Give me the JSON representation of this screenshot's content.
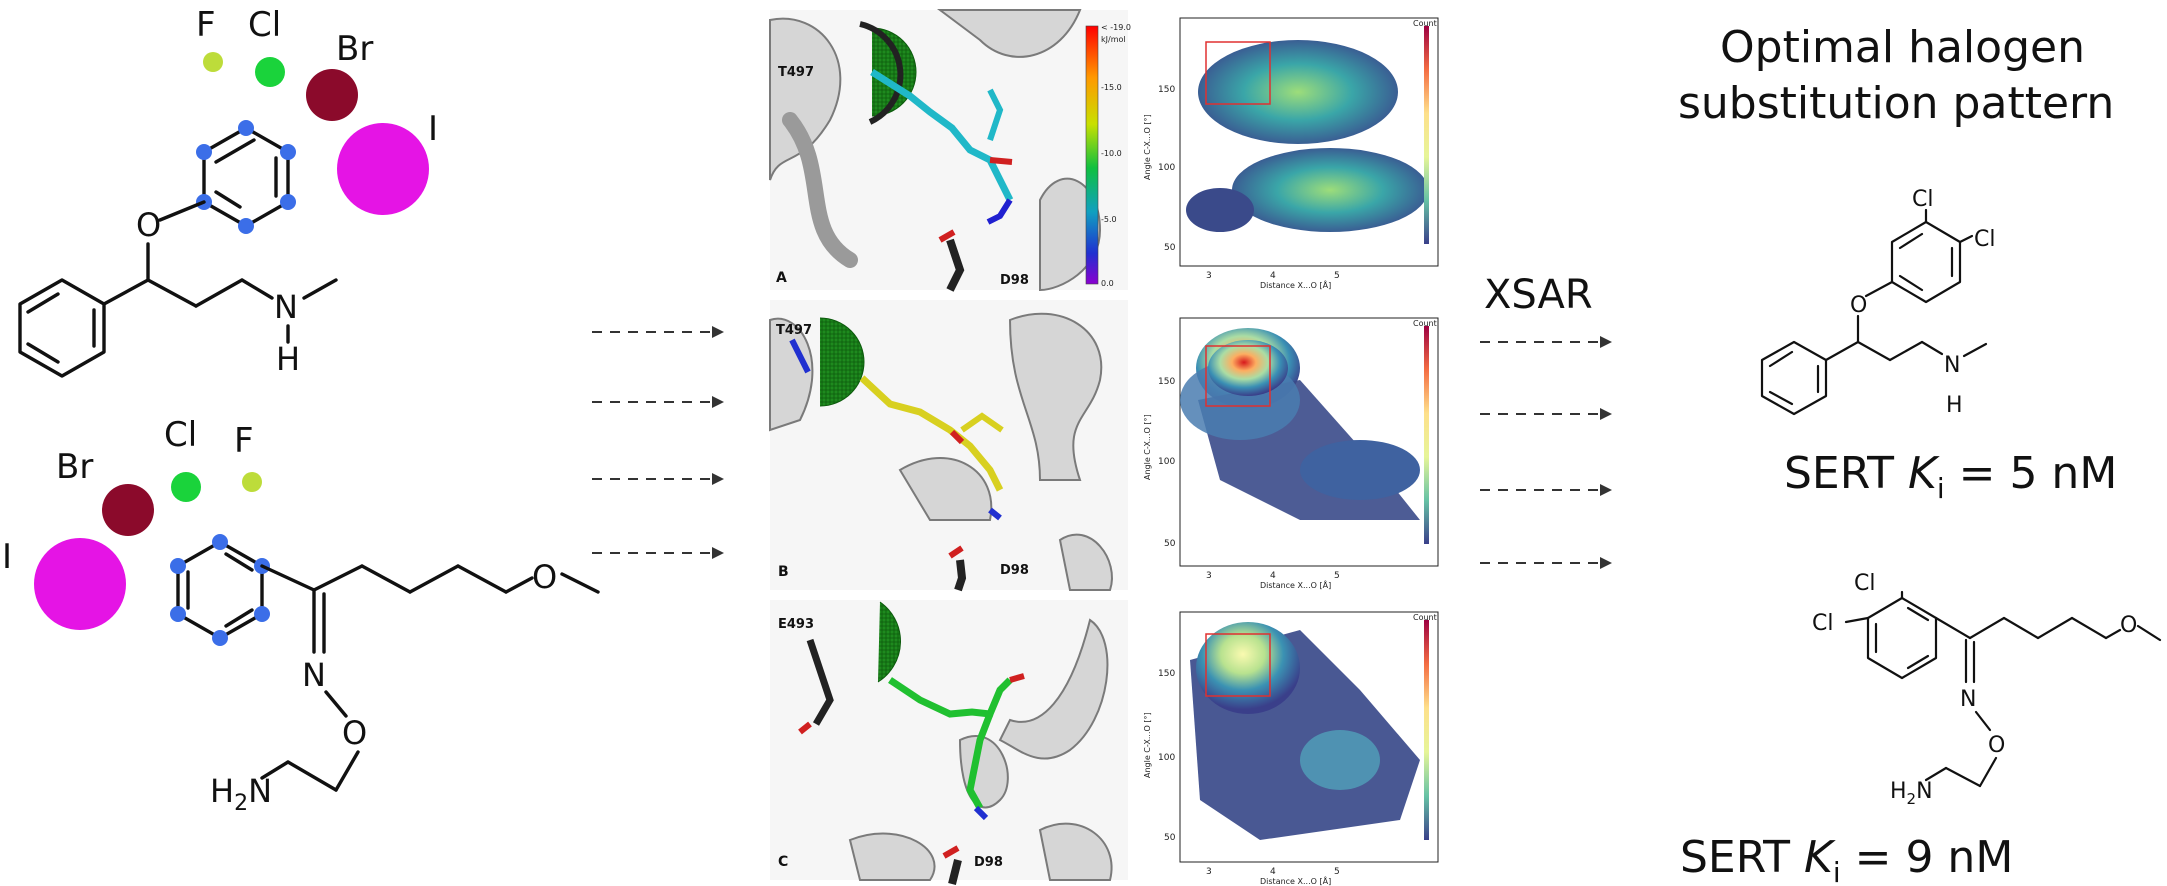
{
  "left_top": {
    "halogens": [
      "F",
      "Cl",
      "Br",
      "I"
    ],
    "atoms": [
      "O",
      "N",
      "H"
    ]
  },
  "left_bottom": {
    "halogens": [
      "Br",
      "Cl",
      "F",
      "I"
    ],
    "atoms": [
      "O",
      "N",
      "O"
    ],
    "amine_H": "H",
    "amine_sub": "2",
    "amine_N": "N"
  },
  "panels": {
    "labels": [
      "A",
      "B",
      "C"
    ],
    "residues_top": [
      "T497",
      "T497",
      "E493"
    ],
    "residues_bottom": [
      "D98",
      "D98",
      "D98"
    ],
    "colorbar_ticks": [
      "< -19.0\nkJ/mol",
      "-15.0",
      "-10.0",
      "-5.0",
      "0.0"
    ],
    "colorbar_top": "< -19.0",
    "colorbar_unit": "kJ/mol"
  },
  "hexplots": {
    "xlabel": "Distance X...O [Å]",
    "ylabel": "Angle C-X...O [°]",
    "x_ticks": [
      "3",
      "4",
      "5"
    ],
    "y_ticks": [
      "150",
      "100",
      "50"
    ],
    "legend_title": "Count"
  },
  "xsar_label": "XSAR",
  "title_line1": "Optimal halogen",
  "title_line2": "substitution pattern",
  "right_top": {
    "cl1": "Cl",
    "cl2": "Cl",
    "o": "O",
    "n": "N",
    "h": "H",
    "ki_prefix": "SERT ",
    "ki_symbol": "K",
    "ki_sub": "i",
    "ki_value": " = 5 nM"
  },
  "right_bottom": {
    "cl1": "Cl",
    "cl2": "Cl",
    "o1": "O",
    "n": "N",
    "o2": "O",
    "h2n_H": "H",
    "h2n_sub": "2",
    "h2n_N": "N",
    "ki_prefix": "SERT ",
    "ki_symbol": "K",
    "ki_sub": "i",
    "ki_value": " = 9 nM"
  },
  "colors": {
    "F": "#bddc3a",
    "Cl": "#1ad33b",
    "Br": "#8b0a2b",
    "I": "#e514e5",
    "ring_atom": "#3b6ee8"
  }
}
